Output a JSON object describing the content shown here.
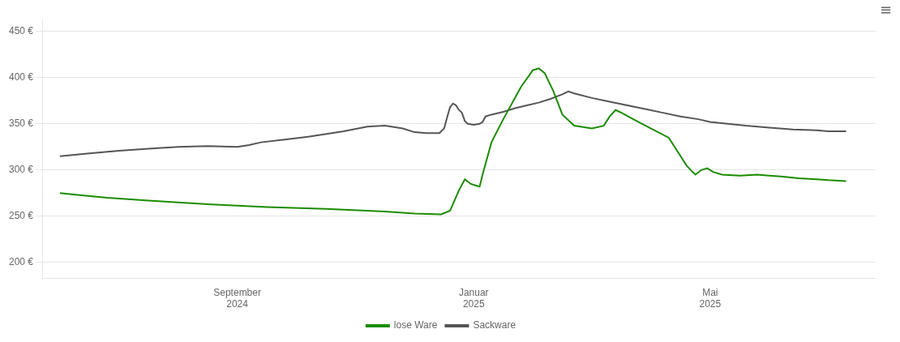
{
  "chart_data": {
    "type": "line",
    "series": [
      {
        "name": "lose Ware",
        "color": "#1a8c00",
        "x": [
          0,
          0.3,
          0.8,
          1.5,
          2.5,
          3.5,
          4.5,
          5.5,
          6.0,
          6.45,
          6.46,
          6.6,
          6.75,
          6.85,
          6.95,
          7.05,
          7.1,
          7.15,
          7.3,
          7.5,
          7.8,
          8.0,
          8.1,
          8.2,
          8.35,
          8.5,
          8.7,
          9.0,
          9.2,
          9.3,
          9.4,
          9.5,
          9.7,
          10.0,
          10.3,
          10.5,
          10.6,
          10.7,
          10.75,
          10.85,
          10.95,
          11.05,
          11.2,
          11.5,
          11.8,
          12.0,
          12.2,
          12.5,
          12.8,
          13.0,
          13.3
        ],
        "values": [
          275,
          273,
          270,
          267,
          263,
          260,
          258,
          255,
          253,
          252,
          252,
          256,
          278,
          290,
          285,
          283,
          282,
          295,
          330,
          355,
          390,
          408,
          410,
          405,
          385,
          360,
          348,
          345,
          348,
          358,
          365,
          362,
          355,
          345,
          335,
          315,
          305,
          298,
          295,
          300,
          302,
          298,
          295,
          294,
          295,
          294,
          293,
          291,
          290,
          289,
          288
        ]
      },
      {
        "name": "Sackware",
        "color": "#555555",
        "x": [
          0,
          0.5,
          1.0,
          1.5,
          2.0,
          2.5,
          3.0,
          3.2,
          3.4,
          3.8,
          4.2,
          4.8,
          5.2,
          5.5,
          5.8,
          6.0,
          6.2,
          6.3,
          6.4,
          6.42,
          6.5,
          6.55,
          6.6,
          6.65,
          6.7,
          6.75,
          6.8,
          6.85,
          6.9,
          7.0,
          7.1,
          7.15,
          7.2,
          7.3,
          7.5,
          7.7,
          7.9,
          8.1,
          8.3,
          8.5,
          8.6,
          8.7,
          9.0,
          9.3,
          9.6,
          9.9,
          10.2,
          10.5,
          10.8,
          11.0,
          11.3,
          11.6,
          12.0,
          12.4,
          12.8,
          13.0,
          13.3
        ],
        "values": [
          315,
          318,
          321,
          323,
          325,
          326,
          325,
          327,
          330,
          333,
          336,
          342,
          347,
          348,
          345,
          341,
          340,
          340,
          340,
          340,
          345,
          357,
          368,
          372,
          370,
          365,
          362,
          353,
          350,
          349,
          350,
          352,
          358,
          360,
          363,
          367,
          370,
          373,
          377,
          382,
          385,
          383,
          378,
          374,
          370,
          366,
          362,
          358,
          355,
          352,
          350,
          348,
          346,
          344,
          343,
          342,
          342
        ]
      }
    ],
    "xlim": [
      -0.3,
      13.8
    ],
    "xticks": [
      {
        "value": 3,
        "label": "September\n2024"
      },
      {
        "value": 7,
        "label": "Januar\n2025"
      },
      {
        "value": 11,
        "label": "Mai\n2025"
      }
    ],
    "ylim": [
      183,
      463
    ],
    "yticks": [
      {
        "value": 200,
        "label": "200 €"
      },
      {
        "value": 250,
        "label": "250 €"
      },
      {
        "value": 300,
        "label": "300 €"
      },
      {
        "value": 350,
        "label": "350 €"
      },
      {
        "value": 400,
        "label": "400 €"
      },
      {
        "value": 450,
        "label": "450 €"
      }
    ],
    "grid": "y",
    "legend": "bottom",
    "annotations": [
      "≡"
    ]
  }
}
